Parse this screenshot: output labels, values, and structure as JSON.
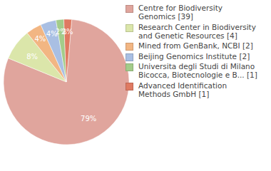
{
  "chart_data": {
    "type": "pie",
    "categories": [
      "Centre for Biodiversity Genomics [39]",
      "Research Center in Biodiversity and Genetic Resources [4]",
      "Mined from GenBank, NCBI [2]",
      "Beijing Genomics Institute [2]",
      "Universita degli Studi di Milano Bicocca, Biotecnologie e B... [1]",
      "Advanced Identification Methods GmbH [1]"
    ],
    "values": [
      79,
      8,
      4,
      4,
      2,
      2
    ],
    "value_labels": [
      "79%",
      "8%",
      "4%",
      "4%",
      "2%",
      "2%"
    ],
    "colors": [
      "#e0a59d",
      "#dbe6aa",
      "#f2b683",
      "#a9bfe3",
      "#a3cc8a",
      "#df7a62"
    ],
    "data_labels": true,
    "legend": "right"
  }
}
